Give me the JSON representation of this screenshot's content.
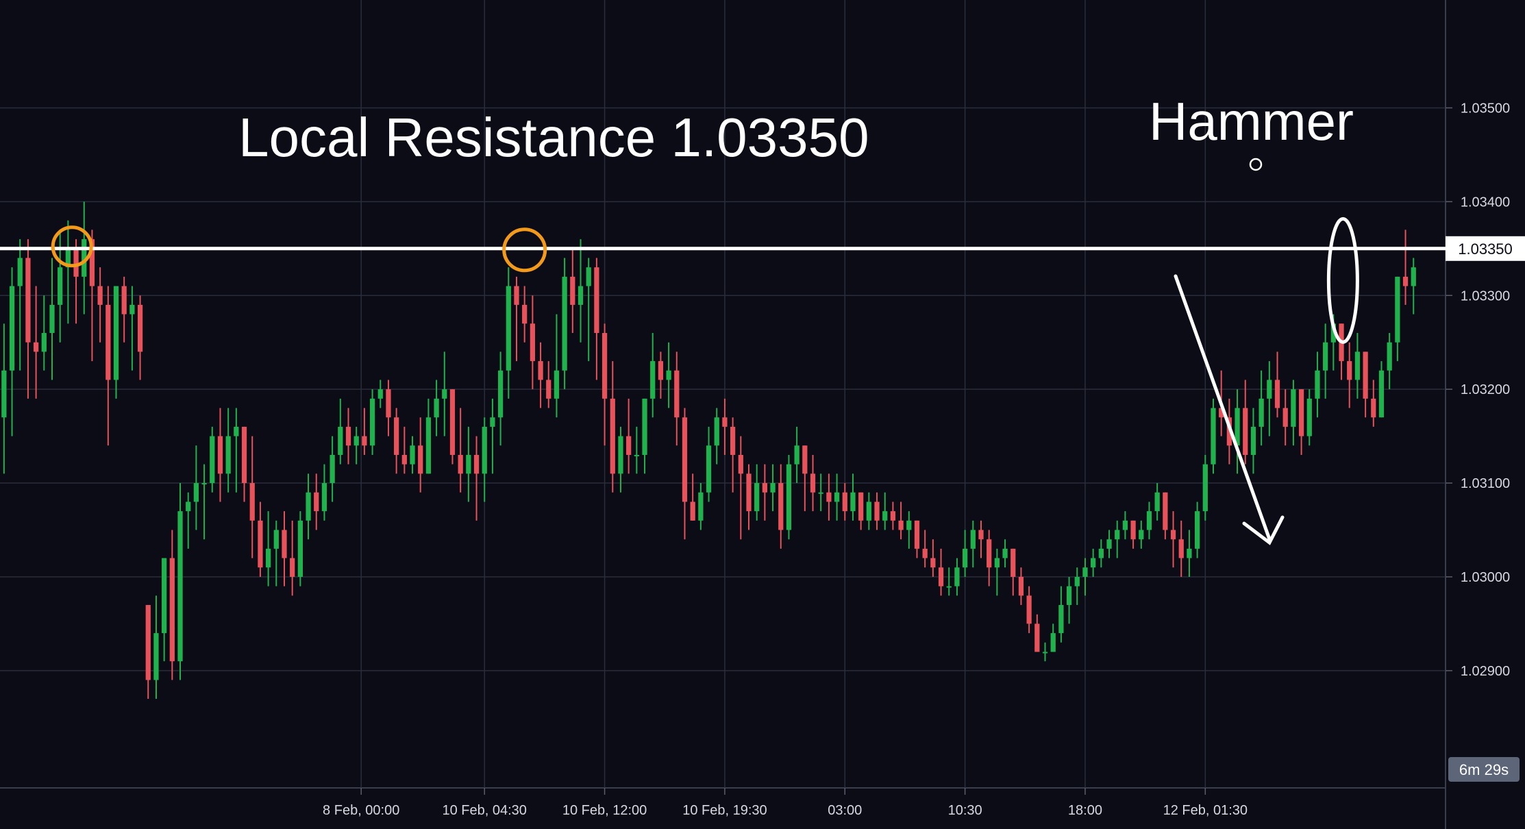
{
  "chart_data": {
    "type": "candlestick",
    "title": "",
    "xlabel": "",
    "ylabel": "",
    "ylim": [
      1.02775,
      1.03615
    ],
    "y_ticks": [
      "1.03500",
      "1.03400",
      "1.03300",
      "1.03200",
      "1.03100",
      "1.03000",
      "1.02900"
    ],
    "y_tick_values": [
      1.035,
      1.034,
      1.033,
      1.032,
      1.031,
      1.03,
      1.029
    ],
    "x_ticks": [
      "8 Feb, 00:00",
      "10 Feb, 04:30",
      "10 Feb, 12:00",
      "10 Feb, 19:30",
      "03:00",
      "10:30",
      "18:00",
      "12 Feb, 01:30"
    ],
    "x_tick_positions": [
      44.6,
      60,
      75,
      90,
      105,
      120,
      135,
      150
    ],
    "x_range": [
      -0.5,
      180
    ],
    "resistance": {
      "value": 1.0335,
      "label": "1.03350"
    },
    "countdown": "6m 29s",
    "colors": {
      "up": "#20b34d",
      "down": "#e8525a",
      "background": "#0b0c16",
      "grid": "#2a2d3b",
      "circle": "#f39a1b",
      "line": "#ffffff"
    },
    "ohlc": [
      [
        1.0317,
        1.0327,
        1.0311,
        1.0322
      ],
      [
        1.0322,
        1.0333,
        1.0315,
        1.0331
      ],
      [
        1.0331,
        1.0336,
        1.0322,
        1.0334
      ],
      [
        1.0334,
        1.0336,
        1.0319,
        1.0325
      ],
      [
        1.0325,
        1.0331,
        1.0319,
        1.0324
      ],
      [
        1.0324,
        1.033,
        1.0322,
        1.0326
      ],
      [
        1.0326,
        1.0334,
        1.0321,
        1.0329
      ],
      [
        1.0329,
        1.0337,
        1.0325,
        1.0333
      ],
      [
        1.0333,
        1.0338,
        1.0327,
        1.0335
      ],
      [
        1.0335,
        1.0336,
        1.0327,
        1.0332
      ],
      [
        1.0332,
        1.034,
        1.0328,
        1.0336
      ],
      [
        1.0336,
        1.0337,
        1.0323,
        1.0331
      ],
      [
        1.0331,
        1.0333,
        1.0325,
        1.0329
      ],
      [
        1.0329,
        1.0331,
        1.0314,
        1.0321
      ],
      [
        1.0321,
        1.0331,
        1.0319,
        1.0331
      ],
      [
        1.0331,
        1.0332,
        1.0325,
        1.0328
      ],
      [
        1.0328,
        1.0331,
        1.0322,
        1.0329
      ],
      [
        1.0329,
        1.033,
        1.0321,
        1.0324
      ]
    ],
    "ohlc_2": [
      [
        1.0297,
        1.0297,
        1.0287,
        1.0289
      ],
      [
        1.0289,
        1.0298,
        1.0287,
        1.0294
      ],
      [
        1.0294,
        1.0301,
        1.0291,
        1.0302
      ],
      [
        1.0302,
        1.0305,
        1.0289,
        1.0291
      ],
      [
        1.0291,
        1.031,
        1.0289,
        1.0307
      ],
      [
        1.0307,
        1.0309,
        1.0303,
        1.0308
      ],
      [
        1.0308,
        1.0314,
        1.0305,
        1.031
      ],
      [
        1.031,
        1.0312,
        1.0304,
        1.031
      ],
      [
        1.031,
        1.0316,
        1.0309,
        1.0315
      ],
      [
        1.0315,
        1.0318,
        1.0308,
        1.0311
      ],
      [
        1.0311,
        1.0318,
        1.0309,
        1.0315
      ],
      [
        1.0315,
        1.0318,
        1.0309,
        1.0316
      ],
      [
        1.0316,
        1.0315,
        1.0308,
        1.031
      ],
      [
        1.031,
        1.0315,
        1.0302,
        1.0306
      ],
      [
        1.0306,
        1.0308,
        1.03,
        1.0301
      ],
      [
        1.0301,
        1.0307,
        1.0299,
        1.0303
      ],
      [
        1.0303,
        1.0306,
        1.0299,
        1.0305
      ],
      [
        1.0305,
        1.0307,
        1.0299,
        1.0302
      ],
      [
        1.0302,
        1.0306,
        1.0298,
        1.03
      ],
      [
        1.03,
        1.0307,
        1.0299,
        1.0306
      ],
      [
        1.0306,
        1.0311,
        1.0304,
        1.0309
      ],
      [
        1.0309,
        1.0311,
        1.0305,
        1.0307
      ],
      [
        1.0307,
        1.0312,
        1.0306,
        1.031
      ],
      [
        1.031,
        1.0315,
        1.0308,
        1.0313
      ],
      [
        1.0313,
        1.0319,
        1.0312,
        1.0316
      ],
      [
        1.0316,
        1.0318,
        1.0312,
        1.0314
      ],
      [
        1.0314,
        1.0316,
        1.0312,
        1.0315
      ],
      [
        1.0315,
        1.0318,
        1.0313,
        1.0314
      ],
      [
        1.0314,
        1.032,
        1.0313,
        1.0319
      ],
      [
        1.0319,
        1.0321,
        1.0318,
        1.032
      ],
      [
        1.032,
        1.0321,
        1.0315,
        1.0317
      ],
      [
        1.0317,
        1.0318,
        1.0311,
        1.0313
      ],
      [
        1.0313,
        1.0316,
        1.0311,
        1.0312
      ],
      [
        1.0312,
        1.0315,
        1.0311,
        1.0314
      ],
      [
        1.0314,
        1.0317,
        1.0309,
        1.0311
      ],
      [
        1.0311,
        1.0319,
        1.0311,
        1.0317
      ],
      [
        1.0317,
        1.0321,
        1.0315,
        1.0319
      ],
      [
        1.0319,
        1.0324,
        1.0315,
        1.032
      ],
      [
        1.032,
        1.0319,
        1.0312,
        1.0313
      ],
      [
        1.0313,
        1.0318,
        1.0309,
        1.0311
      ],
      [
        1.0311,
        1.0316,
        1.0308,
        1.0313
      ],
      [
        1.0313,
        1.0315,
        1.0306,
        1.0311
      ],
      [
        1.0311,
        1.0317,
        1.0308,
        1.0316
      ],
      [
        1.0316,
        1.0319,
        1.0311,
        1.0317
      ],
      [
        1.0317,
        1.0324,
        1.0314,
        1.0322
      ],
      [
        1.0322,
        1.0333,
        1.0319,
        1.0331
      ],
      [
        1.0331,
        1.0332,
        1.0323,
        1.0329
      ],
      [
        1.0329,
        1.0331,
        1.0325,
        1.0327
      ],
      [
        1.0327,
        1.033,
        1.032,
        1.0323
      ],
      [
        1.0323,
        1.0325,
        1.0318,
        1.0321
      ],
      [
        1.0321,
        1.0323,
        1.0318,
        1.0319
      ],
      [
        1.0319,
        1.0328,
        1.0317,
        1.0322
      ],
      [
        1.0322,
        1.0334,
        1.032,
        1.0332
      ],
      [
        1.0332,
        1.0335,
        1.0326,
        1.0329
      ],
      [
        1.0329,
        1.0336,
        1.0325,
        1.0331
      ],
      [
        1.0331,
        1.0334,
        1.0323,
        1.0333
      ],
      [
        1.0333,
        1.0334,
        1.0321,
        1.0326
      ],
      [
        1.0326,
        1.0327,
        1.0314,
        1.0319
      ],
      [
        1.0319,
        1.0323,
        1.0309,
        1.0311
      ],
      [
        1.0311,
        1.0316,
        1.0309,
        1.0315
      ],
      [
        1.0315,
        1.0319,
        1.0311,
        1.0313
      ],
      [
        1.0313,
        1.0316,
        1.0311,
        1.0313
      ],
      [
        1.0313,
        1.0317,
        1.0311,
        1.0319
      ],
      [
        1.0319,
        1.0326,
        1.0317,
        1.0323
      ],
      [
        1.0323,
        1.0324,
        1.0319,
        1.0321
      ],
      [
        1.0321,
        1.0325,
        1.0318,
        1.0322
      ],
      [
        1.0322,
        1.0324,
        1.0314,
        1.0317
      ],
      [
        1.0317,
        1.0318,
        1.0304,
        1.0308
      ],
      [
        1.0308,
        1.0311,
        1.0306,
        1.0306
      ],
      [
        1.0306,
        1.031,
        1.0305,
        1.0309
      ],
      [
        1.0309,
        1.0316,
        1.0308,
        1.0314
      ],
      [
        1.0314,
        1.0318,
        1.0312,
        1.0317
      ],
      [
        1.0317,
        1.0319,
        1.0313,
        1.0316
      ],
      [
        1.0316,
        1.0317,
        1.0309,
        1.0313
      ],
      [
        1.0313,
        1.0315,
        1.0304,
        1.0311
      ],
      [
        1.0311,
        1.0312,
        1.0305,
        1.0307
      ],
      [
        1.0307,
        1.0312,
        1.0306,
        1.031
      ],
      [
        1.031,
        1.0312,
        1.0306,
        1.0309
      ],
      [
        1.0309,
        1.0312,
        1.0307,
        1.031
      ],
      [
        1.031,
        1.0312,
        1.0303,
        1.0305
      ],
      [
        1.0305,
        1.0313,
        1.0304,
        1.0312
      ],
      [
        1.0312,
        1.0316,
        1.031,
        1.0314
      ],
      [
        1.0314,
        1.0313,
        1.0307,
        1.0311
      ],
      [
        1.0311,
        1.0313,
        1.0307,
        1.0309
      ],
      [
        1.0309,
        1.0311,
        1.0307,
        1.0309
      ],
      [
        1.0309,
        1.0311,
        1.0306,
        1.0308
      ],
      [
        1.0308,
        1.0311,
        1.0306,
        1.0309
      ],
      [
        1.0309,
        1.031,
        1.0306,
        1.0307
      ],
      [
        1.0307,
        1.0311,
        1.0306,
        1.0309
      ],
      [
        1.0309,
        1.0308,
        1.0305,
        1.0306
      ],
      [
        1.0306,
        1.0309,
        1.0305,
        1.0308
      ],
      [
        1.0308,
        1.0309,
        1.0305,
        1.0306
      ],
      [
        1.0306,
        1.0309,
        1.0305,
        1.0307
      ],
      [
        1.0307,
        1.0308,
        1.0305,
        1.0306
      ],
      [
        1.0306,
        1.0308,
        1.0304,
        1.0305
      ],
      [
        1.0305,
        1.0307,
        1.0303,
        1.0306
      ],
      [
        1.0306,
        1.0306,
        1.0302,
        1.0303
      ],
      [
        1.0303,
        1.0305,
        1.0301,
        1.0302
      ],
      [
        1.0302,
        1.0304,
        1.03,
        1.0301
      ],
      [
        1.0301,
        1.0303,
        1.0298,
        1.0299
      ],
      [
        1.0299,
        1.0301,
        1.0298,
        1.0299
      ],
      [
        1.0299,
        1.0302,
        1.0298,
        1.0301
      ],
      [
        1.0301,
        1.0305,
        1.03,
        1.0303
      ],
      [
        1.0303,
        1.0306,
        1.0301,
        1.0305
      ],
      [
        1.0305,
        1.0306,
        1.0302,
        1.0304
      ],
      [
        1.0304,
        1.0305,
        1.0299,
        1.0301
      ],
      [
        1.0301,
        1.0303,
        1.0298,
        1.0302
      ],
      [
        1.0302,
        1.0304,
        1.0301,
        1.0303
      ],
      [
        1.0303,
        1.0303,
        1.0298,
        1.03
      ],
      [
        1.03,
        1.0301,
        1.0297,
        1.0298
      ],
      [
        1.0298,
        1.0299,
        1.0294,
        1.0295
      ],
      [
        1.0295,
        1.0296,
        1.0292,
        1.0292
      ],
      [
        1.0292,
        1.0293,
        1.0291,
        1.0292
      ],
      [
        1.0292,
        1.0295,
        1.0292,
        1.0294
      ],
      [
        1.0294,
        1.0299,
        1.0293,
        1.0297
      ],
      [
        1.0297,
        1.03,
        1.0295,
        1.0299
      ],
      [
        1.0299,
        1.0301,
        1.0297,
        1.03
      ],
      [
        1.03,
        1.0302,
        1.0298,
        1.0301
      ],
      [
        1.0301,
        1.0303,
        1.03,
        1.0302
      ],
      [
        1.0302,
        1.0304,
        1.0301,
        1.0303
      ],
      [
        1.0303,
        1.0305,
        1.0302,
        1.0304
      ],
      [
        1.0304,
        1.0306,
        1.0302,
        1.0305
      ],
      [
        1.0305,
        1.0307,
        1.0304,
        1.0306
      ],
      [
        1.0306,
        1.0305,
        1.0303,
        1.0304
      ],
      [
        1.0304,
        1.0306,
        1.0303,
        1.0305
      ],
      [
        1.0305,
        1.0308,
        1.0304,
        1.0307
      ],
      [
        1.0307,
        1.031,
        1.0306,
        1.0309
      ],
      [
        1.0309,
        1.0308,
        1.0304,
        1.0305
      ],
      [
        1.0305,
        1.0307,
        1.0301,
        1.0304
      ],
      [
        1.0304,
        1.0306,
        1.03,
        1.0302
      ],
      [
        1.0302,
        1.0305,
        1.03,
        1.0303
      ],
      [
        1.0303,
        1.0308,
        1.0302,
        1.0307
      ],
      [
        1.0307,
        1.0313,
        1.0306,
        1.0312
      ],
      [
        1.0312,
        1.0319,
        1.0311,
        1.0318
      ],
      [
        1.0318,
        1.0322,
        1.0315,
        1.0317
      ],
      [
        1.0317,
        1.0319,
        1.0312,
        1.0314
      ],
      [
        1.0314,
        1.032,
        1.0311,
        1.0318
      ],
      [
        1.0318,
        1.0321,
        1.0312,
        1.0313
      ],
      [
        1.0313,
        1.0318,
        1.0311,
        1.0316
      ],
      [
        1.0316,
        1.0322,
        1.0314,
        1.0319
      ],
      [
        1.0319,
        1.0323,
        1.0315,
        1.0321
      ],
      [
        1.0321,
        1.0324,
        1.0317,
        1.0318
      ],
      [
        1.0318,
        1.032,
        1.0314,
        1.0316
      ],
      [
        1.0316,
        1.0321,
        1.0314,
        1.032
      ],
      [
        1.032,
        1.0318,
        1.0313,
        1.0315
      ],
      [
        1.0315,
        1.032,
        1.0314,
        1.0319
      ],
      [
        1.0319,
        1.0324,
        1.0317,
        1.0322
      ],
      [
        1.0322,
        1.0327,
        1.0319,
        1.0325
      ],
      [
        1.0325,
        1.0328,
        1.0322,
        1.0327
      ],
      [
        1.0327,
        1.0326,
        1.0321,
        1.0323
      ],
      [
        1.0323,
        1.0325,
        1.0318,
        1.0321
      ],
      [
        1.0321,
        1.0326,
        1.0319,
        1.0324
      ],
      [
        1.0324,
        1.0323,
        1.0317,
        1.0319
      ],
      [
        1.0319,
        1.0321,
        1.0316,
        1.0317
      ],
      [
        1.0317,
        1.0323,
        1.0317,
        1.0322
      ],
      [
        1.0322,
        1.0326,
        1.032,
        1.0325
      ],
      [
        1.0325,
        1.033,
        1.0323,
        1.0332
      ],
      [
        1.0332,
        1.0337,
        1.0329,
        1.0331
      ],
      [
        1.0331,
        1.0334,
        1.0328,
        1.0333
      ]
    ],
    "annotations": [
      {
        "text": "Local Resistance 1.03350"
      },
      {
        "text": "Hammer"
      }
    ]
  }
}
